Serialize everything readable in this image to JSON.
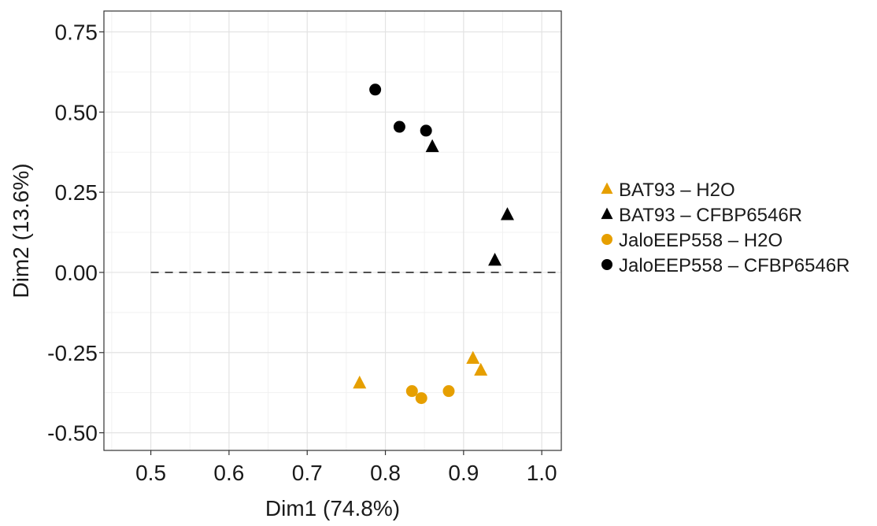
{
  "chart_data": {
    "type": "scatter",
    "title": "",
    "xlabel": "Dim1 (74.8%)",
    "ylabel": "Dim2 (13.6%)",
    "xlim": [
      0.44,
      1.025
    ],
    "ylim": [
      -0.555,
      0.815
    ],
    "x_ticks": [
      0.5,
      0.6,
      0.7,
      0.8,
      0.9,
      1.0
    ],
    "x_tick_labels": [
      "0.5",
      "0.6",
      "0.7",
      "0.8",
      "0.9",
      "1.0"
    ],
    "y_ticks": [
      -0.5,
      -0.25,
      0.0,
      0.25,
      0.5,
      0.75
    ],
    "y_tick_labels": [
      "-0.50",
      "-0.25",
      "0.00",
      "0.25",
      "0.50",
      "0.75"
    ],
    "grid": true,
    "reference_line": {
      "y": 0.0,
      "style": "dashed"
    },
    "legend_position": "right",
    "series": [
      {
        "name": "BAT93 – H2O",
        "marker": "triangle",
        "color": "#E69F00",
        "points": [
          {
            "x": 0.767,
            "y": -0.345
          },
          {
            "x": 0.912,
            "y": -0.268
          },
          {
            "x": 0.922,
            "y": -0.305
          }
        ]
      },
      {
        "name": "BAT93 – CFBP6546R",
        "marker": "triangle",
        "color": "#000000",
        "points": [
          {
            "x": 0.86,
            "y": 0.392
          },
          {
            "x": 0.956,
            "y": 0.18
          },
          {
            "x": 0.94,
            "y": 0.038
          }
        ]
      },
      {
        "name": "JaloEEP558 – H2O",
        "marker": "circle",
        "color": "#E69F00",
        "points": [
          {
            "x": 0.834,
            "y": -0.37
          },
          {
            "x": 0.846,
            "y": -0.392
          },
          {
            "x": 0.881,
            "y": -0.37
          }
        ]
      },
      {
        "name": "JaloEEP558 – CFBP6546R",
        "marker": "circle",
        "color": "#000000",
        "points": [
          {
            "x": 0.787,
            "y": 0.57
          },
          {
            "x": 0.818,
            "y": 0.454
          },
          {
            "x": 0.852,
            "y": 0.442
          }
        ]
      }
    ]
  }
}
